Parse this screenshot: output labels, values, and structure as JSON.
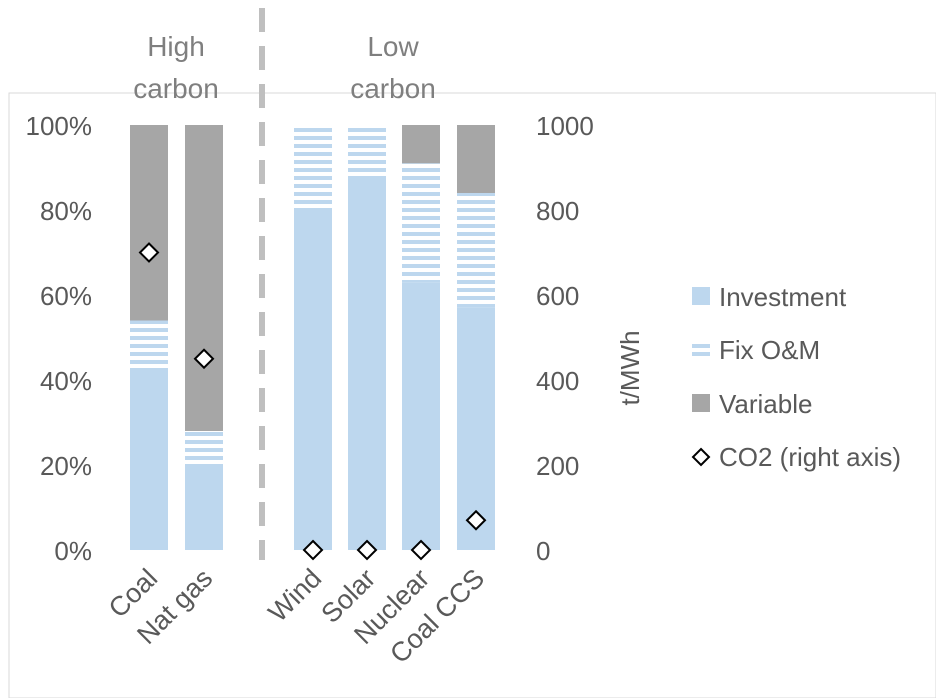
{
  "chart_data": {
    "type": "bar",
    "stacked": true,
    "categories": [
      "Coal",
      "Nat gas",
      "Wind",
      "Solar",
      "Nuclear",
      "Coal CCS"
    ],
    "group_labels": [
      {
        "line1": "High",
        "line2": "carbon",
        "categories": [
          "Coal",
          "Nat gas"
        ]
      },
      {
        "line1": "Low",
        "line2": "carbon",
        "categories": [
          "Wind",
          "Solar",
          "Nuclear",
          "Coal CCS"
        ]
      }
    ],
    "series": [
      {
        "name": "Investment",
        "values": [
          42,
          20,
          80,
          88,
          63,
          57
        ],
        "color": "#bdd7ee",
        "pattern": "solid"
      },
      {
        "name": "Fix O&M",
        "values": [
          12,
          8,
          20,
          12,
          28,
          27
        ],
        "color": "#bdd7ee",
        "pattern": "horizontal-stripes"
      },
      {
        "name": "Variable",
        "values": [
          46,
          72,
          0,
          0,
          9,
          16
        ],
        "color": "#a6a6a6",
        "pattern": "solid"
      },
      {
        "name": "CO2 (right axis)",
        "values": [
          700,
          450,
          0,
          0,
          0,
          70
        ],
        "axis": "right",
        "marker": "diamond"
      }
    ],
    "y_left": {
      "ticks": [
        "0%",
        "20%",
        "40%",
        "60%",
        "80%",
        "100%"
      ],
      "range": [
        0,
        100
      ]
    },
    "y_right": {
      "ticks": [
        "0",
        "200",
        "400",
        "600",
        "800",
        "1000"
      ],
      "range": [
        0,
        1000
      ],
      "label": "t/MWh"
    },
    "legend": {
      "position": "right"
    },
    "grid": false,
    "divider": "dashed vertical line between Nat gas and Wind"
  }
}
